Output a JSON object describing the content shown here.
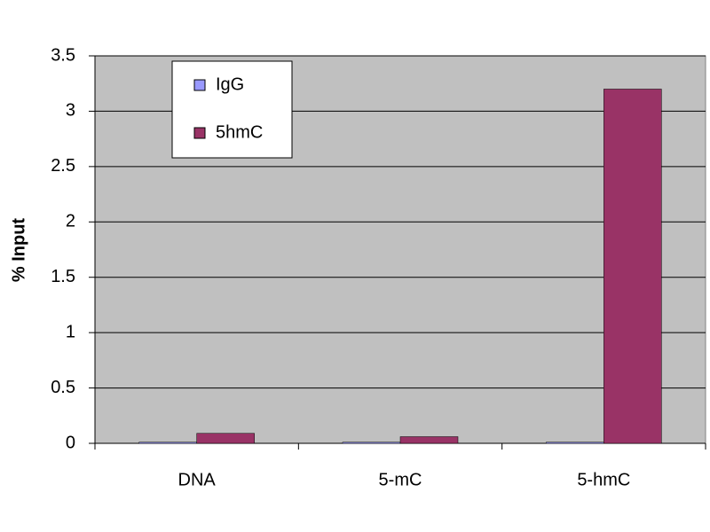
{
  "chart_data": {
    "type": "bar",
    "y_label": "% Input",
    "categories": [
      "DNA",
      "5-mC",
      "5-hmC"
    ],
    "series": [
      {
        "name": "IgG",
        "color": "#9999ff",
        "values": [
          0.01,
          0.01,
          0.01
        ]
      },
      {
        "name": "5hmC",
        "color": "#993366",
        "values": [
          0.09,
          0.06,
          3.2
        ]
      }
    ],
    "ylim": [
      0,
      3.5
    ],
    "yticks": [
      0,
      0.5,
      1,
      1.5,
      2,
      2.5,
      3,
      3.5
    ],
    "grid": true,
    "legend": "upper left"
  }
}
